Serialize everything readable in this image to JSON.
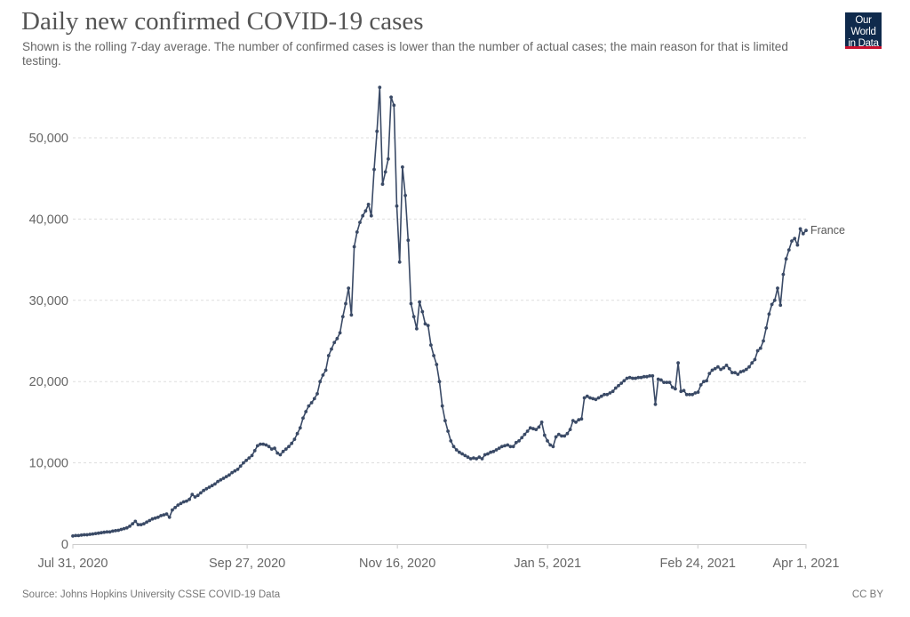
{
  "header": {
    "title": "Daily new confirmed COVID-19 cases",
    "subtitle": "Shown is the rolling 7-day average. The number of confirmed cases is lower than the number of actual cases; the main reason for that is limited testing.",
    "logo_line1": "Our World",
    "logo_line2": "in Data"
  },
  "footer": {
    "source": "Source: Johns Hopkins University CSSE COVID-19 Data",
    "license": "CC BY"
  },
  "colors": {
    "series": "#3a4a66",
    "grid": "#dddddd",
    "axis": "#cccccc",
    "logo_bg": "#0f2a4c",
    "logo_accent": "#c8102e"
  },
  "chart_data": {
    "type": "line",
    "title": "Daily new confirmed COVID-19 cases",
    "xlabel": "",
    "ylabel": "",
    "x_start": "2020-07-31",
    "x_end": "2021-04-01",
    "ylim": [
      0,
      56000
    ],
    "grid": true,
    "y_ticks": [
      {
        "value": 0,
        "label": "0"
      },
      {
        "value": 10000,
        "label": "10,000"
      },
      {
        "value": 20000,
        "label": "20,000"
      },
      {
        "value": 30000,
        "label": "30,000"
      },
      {
        "value": 40000,
        "label": "40,000"
      },
      {
        "value": 50000,
        "label": "50,000"
      }
    ],
    "x_ticks": [
      {
        "day": 0,
        "label": "Jul 31, 2020"
      },
      {
        "day": 58,
        "label": "Sep 27, 2020"
      },
      {
        "day": 108,
        "label": "Nov 16, 2020"
      },
      {
        "day": 158,
        "label": "Jan 5, 2021"
      },
      {
        "day": 208,
        "label": "Feb 24, 2021"
      },
      {
        "day": 244,
        "label": "Apr 1, 2021"
      }
    ],
    "legend": "end-of-line label",
    "series": [
      {
        "name": "France",
        "values": [
          1000,
          1050,
          1050,
          1100,
          1150,
          1150,
          1200,
          1250,
          1300,
          1350,
          1400,
          1450,
          1500,
          1500,
          1600,
          1650,
          1700,
          1800,
          1900,
          2000,
          2200,
          2500,
          2800,
          2400,
          2400,
          2500,
          2700,
          2900,
          3100,
          3200,
          3300,
          3500,
          3600,
          3700,
          3300,
          4200,
          4500,
          4800,
          5000,
          5200,
          5300,
          5500,
          6100,
          5800,
          6000,
          6300,
          6600,
          6800,
          7000,
          7200,
          7400,
          7700,
          7900,
          8100,
          8300,
          8500,
          8800,
          9000,
          9200,
          9600,
          10000,
          10300,
          10600,
          10900,
          11500,
          12100,
          12300,
          12300,
          12200,
          12000,
          11700,
          11800,
          11200,
          11000,
          11400,
          11700,
          12000,
          12400,
          12900,
          13600,
          14300,
          15500,
          16300,
          17000,
          17400,
          17900,
          18500,
          20000,
          20800,
          21400,
          23200,
          24000,
          24800,
          25300,
          26000,
          28000,
          29600,
          31500,
          28200,
          36600,
          38400,
          39600,
          40400,
          41000,
          41800,
          40400,
          46100,
          50800,
          56200,
          44300,
          45800,
          47400,
          55000,
          54000,
          41600,
          34700,
          46400,
          42900,
          37400,
          29600,
          28000,
          26500,
          29800,
          28600,
          27100,
          26900,
          24500,
          23200,
          22100,
          20000,
          17000,
          15200,
          13900,
          12700,
          12000,
          11600,
          11300,
          11100,
          10900,
          10700,
          10500,
          10600,
          10500,
          10700,
          10500,
          11000,
          11100,
          11300,
          11400,
          11600,
          11800,
          12000,
          12100,
          12200,
          12000,
          12000,
          12500,
          12700,
          13100,
          13500,
          13900,
          14300,
          14200,
          14100,
          14400,
          15000,
          13400,
          12700,
          12200,
          12000,
          13200,
          13500,
          13300,
          13300,
          13600,
          14100,
          15200,
          15000,
          15300,
          15400,
          18000,
          18200,
          18000,
          17900,
          17800,
          18000,
          18200,
          18400,
          18400,
          18600,
          18800,
          19200,
          19500,
          19800,
          20100,
          20400,
          20500,
          20400,
          20400,
          20500,
          20500,
          20600,
          20600,
          20700,
          20700,
          17200,
          20300,
          20200,
          19900,
          19900,
          19900,
          19300,
          19100,
          22300,
          18800,
          18900,
          18400,
          18400,
          18400,
          18600,
          18700,
          19600,
          20000,
          20100,
          21000,
          21400,
          21600,
          21800,
          21500,
          21700,
          22000,
          21600,
          21100,
          21100,
          20900,
          21200,
          21300,
          21500,
          21800,
          22300,
          22700,
          23800,
          24100,
          25000,
          26600,
          28300,
          29500,
          30000,
          31500,
          29400,
          33200,
          35100,
          36200,
          37300,
          37600,
          36800,
          38800,
          38200,
          38600
        ]
      }
    ]
  }
}
